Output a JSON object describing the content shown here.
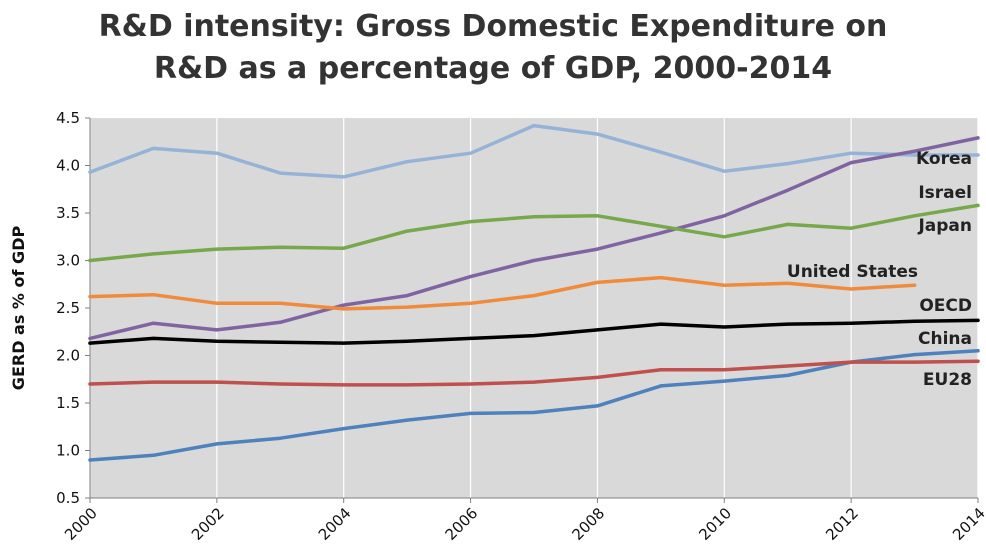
{
  "chart_data": {
    "type": "line",
    "title_lines": [
      "R&D intensity: Gross Domestic Expenditure on",
      "R&D as a percentage of GDP, 2000-2014"
    ],
    "ylabel": "GERD as % of GDP",
    "xlabel": "",
    "x": [
      2000,
      2001,
      2002,
      2003,
      2004,
      2005,
      2006,
      2007,
      2008,
      2009,
      2010,
      2011,
      2012,
      2013,
      2014
    ],
    "x_tick_labels": [
      "2000",
      "2002",
      "2004",
      "2006",
      "2008",
      "2010",
      "2012",
      "2014"
    ],
    "y_tick_labels": [
      "0.5",
      "1.0",
      "1.5",
      "2.0",
      "2.5",
      "3.0",
      "3.5",
      "4.0",
      "4.5"
    ],
    "ylim": [
      0.5,
      4.5
    ],
    "xlim": [
      2000,
      2014
    ],
    "grid": "vertical",
    "plot_background": "#d9d9d9",
    "series": [
      {
        "name": "Israel",
        "color": "#95b3d7",
        "values": [
          3.93,
          4.18,
          4.13,
          3.92,
          3.88,
          4.04,
          4.13,
          4.42,
          4.33,
          4.14,
          3.94,
          4.02,
          4.13,
          4.11,
          4.11
        ]
      },
      {
        "name": "Korea",
        "color": "#8064a2",
        "values": [
          2.18,
          2.34,
          2.27,
          2.35,
          2.53,
          2.63,
          2.83,
          3.0,
          3.12,
          3.29,
          3.47,
          3.74,
          4.03,
          4.15,
          4.29
        ]
      },
      {
        "name": "Japan",
        "color": "#77a84c",
        "values": [
          3.0,
          3.07,
          3.12,
          3.14,
          3.13,
          3.31,
          3.41,
          3.46,
          3.47,
          3.36,
          3.25,
          3.38,
          3.34,
          3.47,
          3.58
        ]
      },
      {
        "name": "United States",
        "color": "#f08b3c",
        "values": [
          2.62,
          2.64,
          2.55,
          2.55,
          2.49,
          2.51,
          2.55,
          2.63,
          2.77,
          2.82,
          2.74,
          2.76,
          2.7,
          2.74,
          null
        ]
      },
      {
        "name": "OECD",
        "color": "#000000",
        "values": [
          2.13,
          2.18,
          2.15,
          2.14,
          2.13,
          2.15,
          2.18,
          2.21,
          2.27,
          2.33,
          2.3,
          2.33,
          2.34,
          2.36,
          2.37
        ]
      },
      {
        "name": "China",
        "color": "#4f81bd",
        "values": [
          0.9,
          0.95,
          1.07,
          1.13,
          1.23,
          1.32,
          1.39,
          1.4,
          1.47,
          1.68,
          1.73,
          1.79,
          1.93,
          2.01,
          2.05
        ]
      },
      {
        "name": "EU28",
        "color": "#c0504d",
        "values": [
          1.7,
          1.72,
          1.72,
          1.7,
          1.69,
          1.69,
          1.7,
          1.72,
          1.77,
          1.85,
          1.85,
          1.89,
          1.93,
          1.93,
          1.94
        ]
      }
    ]
  }
}
